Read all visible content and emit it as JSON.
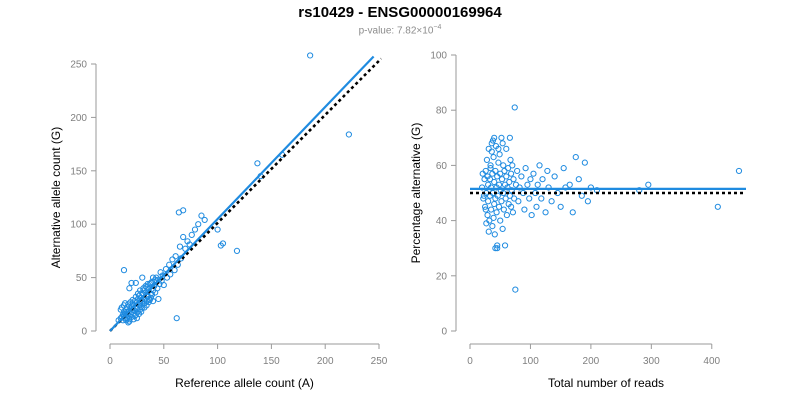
{
  "header": {
    "title": "rs10429 - ENSG00000169964",
    "pvalue_prefix": "p-value: 7.82×10",
    "pvalue_exponent": "−4"
  },
  "colors": {
    "points": "#1f8be0",
    "fit": "#1f8be0",
    "reference": "#000000",
    "axis": "#9a9a9a"
  },
  "chart_data": [
    {
      "type": "scatter",
      "xlabel": "Reference allele count (A)",
      "ylabel": "Alternative allele count (G)",
      "xlim": [
        0,
        250
      ],
      "ylim": [
        0,
        250
      ],
      "xticks": [
        0,
        50,
        100,
        150,
        200,
        250
      ],
      "yticks": [
        0,
        50,
        100,
        150,
        200,
        250
      ],
      "fit_line": {
        "x": [
          0,
          245
        ],
        "y": [
          0,
          257
        ],
        "style": "solid"
      },
      "reference_line": {
        "x": [
          0,
          252
        ],
        "y": [
          0,
          255
        ],
        "style": "dotted"
      },
      "points": [
        [
          8,
          10
        ],
        [
          10,
          12
        ],
        [
          11,
          13
        ],
        [
          12,
          10
        ],
        [
          12,
          15
        ],
        [
          13,
          14
        ],
        [
          13,
          18
        ],
        [
          14,
          16
        ],
        [
          14,
          12
        ],
        [
          15,
          20
        ],
        [
          15,
          15
        ],
        [
          16,
          18
        ],
        [
          16,
          22
        ],
        [
          17,
          14
        ],
        [
          17,
          25
        ],
        [
          18,
          19
        ],
        [
          18,
          11
        ],
        [
          19,
          21
        ],
        [
          19,
          16
        ],
        [
          20,
          23
        ],
        [
          20,
          18
        ],
        [
          20,
          13
        ],
        [
          21,
          26
        ],
        [
          21,
          20
        ],
        [
          22,
          17
        ],
        [
          22,
          24
        ],
        [
          23,
          19
        ],
        [
          23,
          28
        ],
        [
          24,
          22
        ],
        [
          24,
          15
        ],
        [
          25,
          27
        ],
        [
          25,
          21
        ],
        [
          26,
          30
        ],
        [
          26,
          18
        ],
        [
          27,
          24
        ],
        [
          27,
          33
        ],
        [
          28,
          26
        ],
        [
          28,
          20
        ],
        [
          29,
          31
        ],
        [
          29,
          23
        ],
        [
          30,
          35
        ],
        [
          30,
          28
        ],
        [
          31,
          25
        ],
        [
          31,
          38
        ],
        [
          32,
          30
        ],
        [
          32,
          22
        ],
        [
          33,
          36
        ],
        [
          34,
          28
        ],
        [
          34,
          41
        ],
        [
          35,
          33
        ],
        [
          36,
          39
        ],
        [
          36,
          27
        ],
        [
          37,
          44
        ],
        [
          38,
          35
        ],
        [
          38,
          31
        ],
        [
          39,
          46
        ],
        [
          40,
          38
        ],
        [
          41,
          42
        ],
        [
          42,
          36
        ],
        [
          43,
          50
        ],
        [
          44,
          40
        ],
        [
          45,
          48
        ],
        [
          46,
          44
        ],
        [
          47,
          55
        ],
        [
          48,
          47
        ],
        [
          49,
          52
        ],
        [
          50,
          43
        ],
        [
          52,
          58
        ],
        [
          53,
          50
        ],
        [
          55,
          62
        ],
        [
          56,
          53
        ],
        [
          58,
          67
        ],
        [
          60,
          57
        ],
        [
          61,
          70
        ],
        [
          63,
          62
        ],
        [
          65,
          79
        ],
        [
          66,
          68
        ],
        [
          68,
          88
        ],
        [
          70,
          77
        ],
        [
          72,
          84
        ],
        [
          74,
          81
        ],
        [
          76,
          90
        ],
        [
          79,
          95
        ],
        [
          82,
          100
        ],
        [
          85,
          108
        ],
        [
          88,
          104
        ],
        [
          64,
          111
        ],
        [
          68,
          113
        ],
        [
          13,
          57
        ],
        [
          20,
          45
        ],
        [
          24,
          45
        ],
        [
          18,
          40
        ],
        [
          30,
          50
        ],
        [
          35,
          32
        ],
        [
          40,
          50
        ],
        [
          45,
          30
        ],
        [
          62,
          12
        ],
        [
          100,
          95
        ],
        [
          103,
          80
        ],
        [
          105,
          82
        ],
        [
          118,
          75
        ],
        [
          137,
          157
        ],
        [
          140,
          145
        ],
        [
          160,
          165
        ],
        [
          186,
          258
        ],
        [
          222,
          184
        ],
        [
          10,
          20
        ],
        [
          11,
          22
        ],
        [
          13,
          24
        ],
        [
          14,
          26
        ],
        [
          15,
          10
        ],
        [
          16,
          12
        ],
        [
          17,
          8
        ],
        [
          18,
          9
        ],
        [
          19,
          27
        ],
        [
          21,
          29
        ],
        [
          22,
          11
        ],
        [
          23,
          14
        ],
        [
          24,
          32
        ],
        [
          25,
          12
        ],
        [
          26,
          35
        ],
        [
          27,
          16
        ],
        [
          28,
          38
        ],
        [
          29,
          18
        ],
        [
          30,
          22
        ],
        [
          31,
          40
        ],
        [
          32,
          26
        ],
        [
          33,
          42
        ],
        [
          34,
          24
        ],
        [
          35,
          44
        ],
        [
          36,
          30
        ],
        [
          37,
          29
        ],
        [
          38,
          45
        ],
        [
          39,
          34
        ],
        [
          40,
          28
        ],
        [
          42,
          48
        ]
      ]
    },
    {
      "type": "scatter",
      "xlabel": "Total number of reads",
      "ylabel": "Percentage alternative (G)",
      "xlim": [
        0,
        450
      ],
      "ylim": [
        0,
        100
      ],
      "xticks": [
        0,
        100,
        200,
        300,
        400
      ],
      "yticks": [
        0,
        20,
        40,
        60,
        80,
        100
      ],
      "fit_line": {
        "y": 51.5,
        "style": "solid"
      },
      "reference_line": {
        "y": 50,
        "style": "dotted"
      },
      "points": [
        [
          20,
          52
        ],
        [
          22,
          48
        ],
        [
          24,
          55
        ],
        [
          25,
          45
        ],
        [
          26,
          58
        ],
        [
          27,
          50
        ],
        [
          28,
          62
        ],
        [
          29,
          42
        ],
        [
          30,
          53
        ],
        [
          30,
          47
        ],
        [
          31,
          66
        ],
        [
          32,
          40
        ],
        [
          33,
          55
        ],
        [
          33,
          49
        ],
        [
          34,
          60
        ],
        [
          35,
          44
        ],
        [
          35,
          52
        ],
        [
          36,
          68
        ],
        [
          37,
          38
        ],
        [
          37,
          57
        ],
        [
          38,
          50
        ],
        [
          39,
          63
        ],
        [
          40,
          46
        ],
        [
          40,
          54
        ],
        [
          41,
          35
        ],
        [
          42,
          58
        ],
        [
          42,
          48
        ],
        [
          43,
          67
        ],
        [
          44,
          43
        ],
        [
          44,
          52
        ],
        [
          45,
          30
        ],
        [
          45,
          56
        ],
        [
          46,
          49
        ],
        [
          47,
          61
        ],
        [
          48,
          45
        ],
        [
          48,
          53
        ],
        [
          49,
          64
        ],
        [
          50,
          40
        ],
        [
          50,
          57
        ],
        [
          51,
          51
        ],
        [
          52,
          70
        ],
        [
          52,
          47
        ],
        [
          53,
          55
        ],
        [
          54,
          37
        ],
        [
          55,
          60
        ],
        [
          55,
          50
        ],
        [
          56,
          44
        ],
        [
          57,
          58
        ],
        [
          58,
          53
        ],
        [
          59,
          48
        ],
        [
          60,
          66
        ],
        [
          60,
          56
        ],
        [
          61,
          42
        ],
        [
          62,
          52
        ],
        [
          63,
          59
        ],
        [
          64,
          46
        ],
        [
          65,
          54
        ],
        [
          66,
          49
        ],
        [
          67,
          62
        ],
        [
          68,
          57
        ],
        [
          68,
          45
        ],
        [
          69,
          51
        ],
        [
          70,
          60
        ],
        [
          71,
          43
        ],
        [
          72,
          55
        ],
        [
          73,
          48
        ],
        [
          74,
          81
        ],
        [
          75,
          15
        ],
        [
          76,
          53
        ],
        [
          78,
          58
        ],
        [
          80,
          47
        ],
        [
          82,
          52
        ],
        [
          85,
          56
        ],
        [
          88,
          50
        ],
        [
          90,
          44
        ],
        [
          92,
          59
        ],
        [
          95,
          53
        ],
        [
          98,
          48
        ],
        [
          100,
          55
        ],
        [
          102,
          42
        ],
        [
          105,
          57
        ],
        [
          108,
          50
        ],
        [
          110,
          45
        ],
        [
          112,
          53
        ],
        [
          115,
          60
        ],
        [
          118,
          48
        ],
        [
          120,
          55
        ],
        [
          125,
          43
        ],
        [
          128,
          58
        ],
        [
          130,
          52
        ],
        [
          135,
          47
        ],
        [
          140,
          56
        ],
        [
          145,
          50
        ],
        [
          150,
          45
        ],
        [
          155,
          59
        ],
        [
          158,
          52
        ],
        [
          165,
          53
        ],
        [
          170,
          43
        ],
        [
          175,
          63
        ],
        [
          180,
          55
        ],
        [
          185,
          49
        ],
        [
          190,
          61
        ],
        [
          195,
          47
        ],
        [
          200,
          52
        ],
        [
          210,
          51
        ],
        [
          280,
          51
        ],
        [
          295,
          53
        ],
        [
          410,
          45
        ],
        [
          445,
          58
        ],
        [
          38,
          69
        ],
        [
          40,
          70
        ],
        [
          42,
          30
        ],
        [
          45,
          31
        ],
        [
          58,
          31
        ],
        [
          66,
          70
        ],
        [
          54,
          68
        ],
        [
          36,
          65
        ],
        [
          47,
          66
        ],
        [
          34,
          59
        ],
        [
          39,
          41
        ],
        [
          29,
          56
        ],
        [
          31,
          36
        ],
        [
          26,
          44
        ],
        [
          23,
          49
        ],
        [
          21,
          57
        ],
        [
          27,
          39
        ]
      ]
    }
  ]
}
